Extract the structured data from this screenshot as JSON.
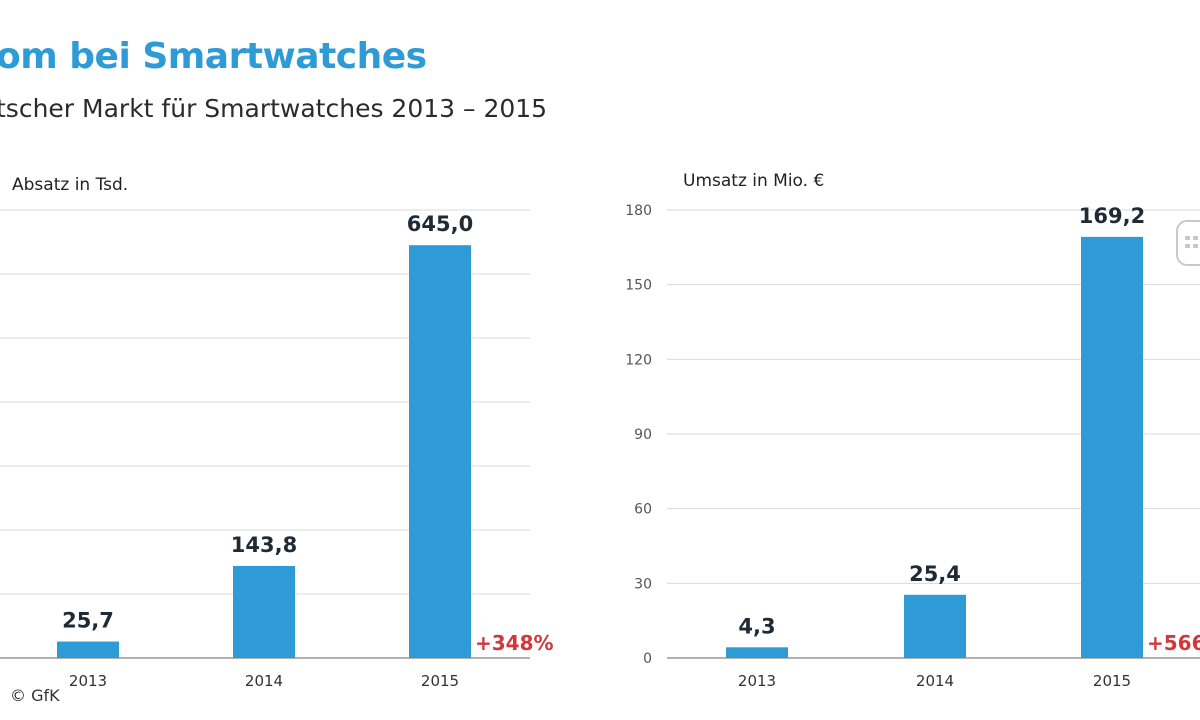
{
  "header": {
    "title": "om bei Smartwatches",
    "subtitle": "tscher Markt für Smartwatches 2013 – 2015"
  },
  "footer": {
    "copyright": "© GfK"
  },
  "colors": {
    "bar": "#2e9bd6",
    "growth": "#d0383b",
    "title": "#2e9bd6",
    "grid": "#d9d9d9",
    "axis": "#999999"
  },
  "chart_data": [
    {
      "type": "bar",
      "ylabel": "Absatz in Tsd.",
      "categories": [
        "2013",
        "2014",
        "2015"
      ],
      "values": [
        25.7,
        143.8,
        645.0
      ],
      "value_labels": [
        "25,7",
        "143,8",
        "645,0"
      ],
      "growth_label": "+348%",
      "ylim": [
        0,
        700
      ],
      "grid": true,
      "gridlines": [
        100,
        200,
        300,
        400,
        500,
        600,
        700
      ],
      "yticks": []
    },
    {
      "type": "bar",
      "ylabel": "Umsatz in Mio. €",
      "categories": [
        "2013",
        "2014",
        "2015"
      ],
      "values": [
        4.3,
        25.4,
        169.2
      ],
      "value_labels": [
        "4,3",
        "25,4",
        "169,2"
      ],
      "growth_label": "+566",
      "ylim": [
        0,
        180
      ],
      "grid": true,
      "gridlines": [
        30,
        60,
        90,
        120,
        150,
        180
      ],
      "yticks": [
        "0",
        "30",
        "60",
        "90",
        "120",
        "150",
        "180"
      ]
    }
  ]
}
